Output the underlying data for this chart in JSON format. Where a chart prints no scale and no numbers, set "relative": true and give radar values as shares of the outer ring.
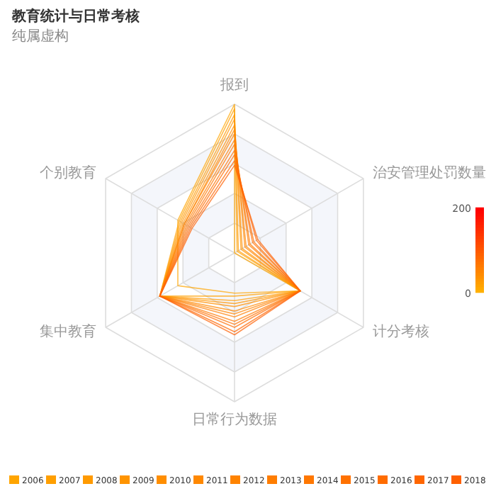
{
  "chart_data": {
    "type": "radar",
    "title": "教育统计与日常考核",
    "subtitle": "纯属虚构",
    "relative": true,
    "legend": "bottom",
    "annotations": [
      "200",
      "0"
    ],
    "categories": [
      "报到",
      "治安管理处罚数量",
      "计分考核",
      "日常行为数据",
      "集中教育",
      "个别教育"
    ],
    "series": [
      {
        "name": "2006",
        "color": "#ffa500",
        "values": [
          1.0,
          0.0,
          0.51,
          0.27,
          0.44,
          0.44
        ]
      },
      {
        "name": "2007",
        "color": "#ff9f00",
        "values": [
          0.97,
          0.02,
          0.51,
          0.29,
          0.58,
          0.43
        ]
      },
      {
        "name": "2008",
        "color": "#ff9a00",
        "values": [
          0.93,
          0.03,
          0.51,
          0.32,
          0.58,
          0.42
        ]
      },
      {
        "name": "2009",
        "color": "#ff9400",
        "values": [
          0.9,
          0.05,
          0.51,
          0.34,
          0.58,
          0.41
        ]
      },
      {
        "name": "2010",
        "color": "#ff8e00",
        "values": [
          0.86,
          0.06,
          0.51,
          0.36,
          0.58,
          0.4
        ]
      },
      {
        "name": "2011",
        "color": "#ff8800",
        "values": [
          0.83,
          0.08,
          0.51,
          0.39,
          0.58,
          0.39
        ]
      },
      {
        "name": "2012",
        "color": "#ff8300",
        "values": [
          0.8,
          0.09,
          0.51,
          0.41,
          0.58,
          0.39
        ]
      },
      {
        "name": "2013",
        "color": "#ff7d00",
        "values": [
          0.76,
          0.11,
          0.51,
          0.43,
          0.58,
          0.38
        ]
      },
      {
        "name": "2014",
        "color": "#ff7700",
        "values": [
          0.73,
          0.12,
          0.51,
          0.46,
          0.58,
          0.37
        ]
      },
      {
        "name": "2015",
        "color": "#ff7100",
        "values": [
          0.69,
          0.14,
          0.51,
          0.48,
          0.58,
          0.36
        ]
      },
      {
        "name": "2016",
        "color": "#ff6c00",
        "values": [
          0.66,
          0.15,
          0.51,
          0.5,
          0.58,
          0.35
        ]
      },
      {
        "name": "2017",
        "color": "#ff6600",
        "values": [
          0.62,
          0.17,
          0.51,
          0.53,
          0.58,
          0.34
        ]
      },
      {
        "name": "2018",
        "color": "#ff6000",
        "values": [
          0.59,
          0.18,
          0.51,
          0.55,
          0.58,
          0.33
        ]
      }
    ]
  }
}
